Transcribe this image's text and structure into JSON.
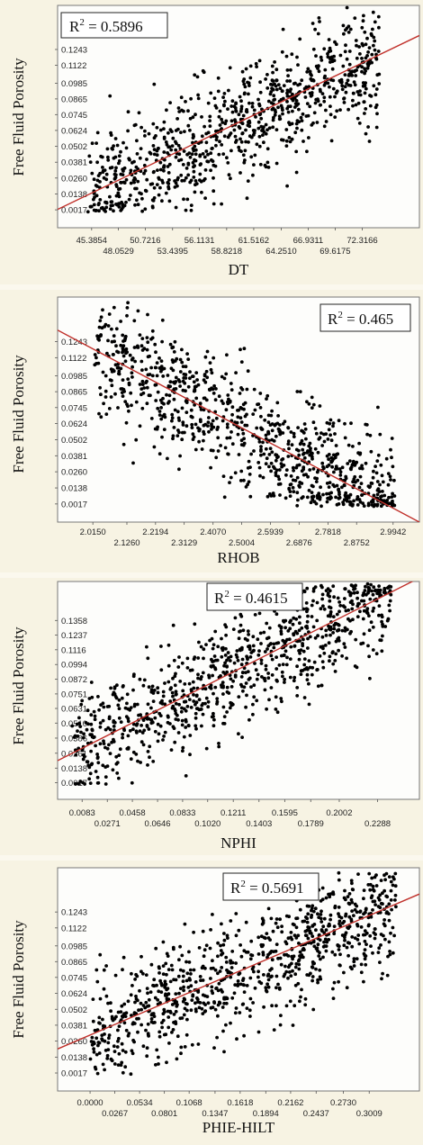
{
  "chart_data": [
    {
      "type": "scatter",
      "ylabel": "Free Fluid Porosity",
      "xlabel": "DT",
      "annotation": {
        "r2_prefix": "R",
        "r2_sup": "2",
        "r2_value": " = 0.5896"
      },
      "ylim": [
        -0.012,
        0.158
      ],
      "xlim": [
        42.0,
        78.0
      ],
      "yticks": [
        "0.0017",
        "0.0138",
        "0.0260",
        "0.0381",
        "0.0502",
        "0.0624",
        "0.0745",
        "0.0865",
        "0.0985",
        "0.1122",
        "0.1243"
      ],
      "xticks_upper": [
        "45.3854",
        "50.7216",
        "56.1131",
        "61.5162",
        "66.9311",
        "72.3166"
      ],
      "xticks_lower": [
        "48.0529",
        "53.4395",
        "58.8218",
        "64.2510",
        "69.6175"
      ],
      "trend": {
        "x": [
          42.0,
          78.0
        ],
        "y": [
          0.002,
          0.135
        ]
      },
      "cloud": {
        "x_range": [
          45.0,
          74.0
        ],
        "seed": 11
      }
    },
    {
      "type": "scatter",
      "ylabel": "Free Fluid Porosity",
      "xlabel": "RHOB",
      "annotation": {
        "r2_prefix": "R",
        "r2_sup": "2",
        "r2_value": " = 0.465"
      },
      "ylim": [
        -0.012,
        0.158
      ],
      "xlim": [
        1.9,
        3.08
      ],
      "yticks": [
        "0.0017",
        "0.0138",
        "0.0260",
        "0.0381",
        "0.0502",
        "0.0624",
        "0.0745",
        "0.0865",
        "0.0985",
        "0.1122",
        "0.1243"
      ],
      "xticks_upper": [
        "2.0150",
        "2.2194",
        "2.4070",
        "2.5939",
        "2.7818",
        "2.9942"
      ],
      "xticks_lower": [
        "2.1260",
        "2.3129",
        "2.5004",
        "2.6876",
        "2.8752"
      ],
      "trend": {
        "x": [
          1.9,
          3.08
        ],
        "y": [
          0.133,
          -0.012
        ]
      },
      "cloud": {
        "x_range": [
          2.02,
          3.0
        ],
        "seed": 23
      }
    },
    {
      "type": "scatter",
      "ylabel": "Free Fluid Porosity",
      "xlabel": "NPHI",
      "annotation": {
        "r2_prefix": "R",
        "r2_sup": "2",
        "r2_value": " = 0.4615"
      },
      "ylim": [
        -0.012,
        0.168
      ],
      "xlim": [
        -0.01,
        0.26
      ],
      "yticks": [
        "0.0017",
        "0.0138",
        "0.0261",
        "0.0386",
        "0.0510",
        "0.0631",
        "0.0751",
        "0.0872",
        "0.0994",
        "0.1116",
        "0.1237",
        "0.1358"
      ],
      "xticks_upper": [
        "0.0083",
        "0.0458",
        "0.0833",
        "0.1211",
        "0.1595",
        "0.2002"
      ],
      "xticks_lower": [
        "0.0271",
        "0.0646",
        "0.1020",
        "0.1403",
        "0.1789",
        "0.2288"
      ],
      "trend": {
        "x": [
          -0.01,
          0.26
        ],
        "y": [
          0.02,
          0.171
        ]
      },
      "cloud": {
        "x_range": [
          0.0,
          0.24
        ],
        "seed": 37
      }
    },
    {
      "type": "scatter",
      "ylabel": "Free Fluid Porosity",
      "xlabel": "PHIE-HILT",
      "annotation": {
        "r2_prefix": "R",
        "r2_sup": "2",
        "r2_value": " = 0.5691"
      },
      "ylim": [
        -0.012,
        0.158
      ],
      "xlim": [
        -0.035,
        0.355
      ],
      "yticks": [
        "0.0017",
        "0.0138",
        "0.0260",
        "0.0381",
        "0.0502",
        "0.0624",
        "0.0745",
        "0.0865",
        "0.0985",
        "0.1122",
        "0.1243"
      ],
      "xticks_upper": [
        "0.0000",
        "0.0534",
        "0.1068",
        "0.1618",
        "0.2162",
        "0.2730"
      ],
      "xticks_lower": [
        "0.0267",
        "0.0801",
        "0.1347",
        "0.1894",
        "0.2437",
        "0.3009"
      ],
      "trend": {
        "x": [
          -0.035,
          0.355
        ],
        "y": [
          0.02,
          0.138
        ]
      },
      "cloud": {
        "x_range": [
          0.0,
          0.33
        ],
        "seed": 53
      }
    }
  ]
}
